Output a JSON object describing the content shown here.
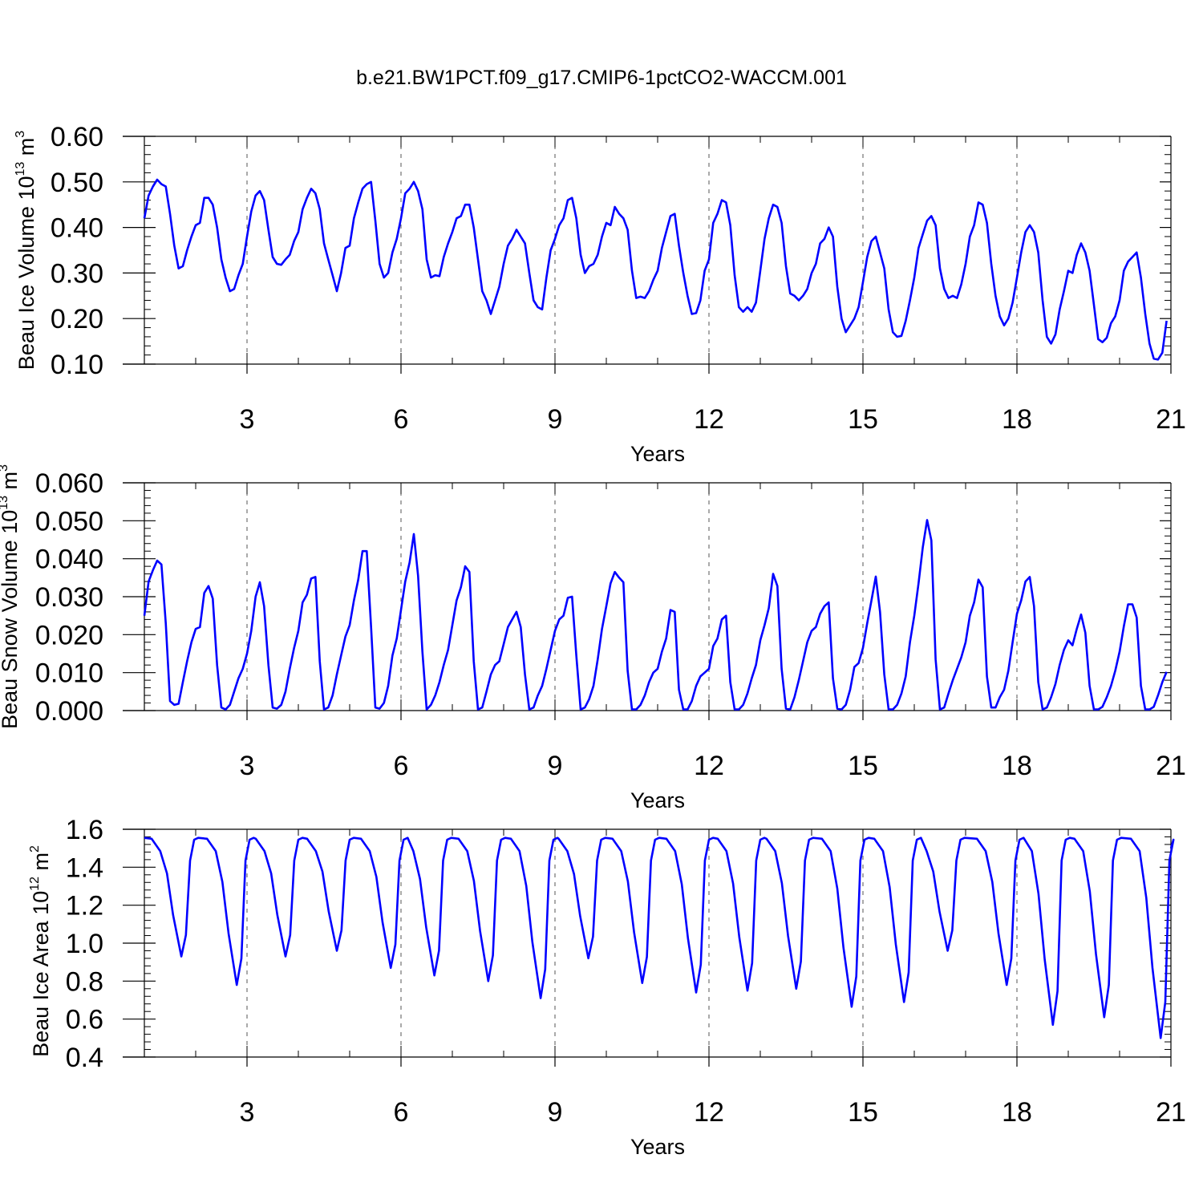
{
  "figure": {
    "title": "b.e21.BW1PCT.f09_g17.CMIP6-1pctCO2-WACCM.001"
  },
  "chart_data": [
    {
      "type": "line",
      "ylabel": {
        "main": "Beau Ice Volume 10",
        "exp": "13",
        "unit": " m",
        "unit_exp": "3"
      },
      "xlabel": "Years",
      "xlim": [
        1.0,
        21.0
      ],
      "ylim": [
        0.1,
        0.6
      ],
      "x_ticks": [
        3,
        6,
        9,
        12,
        15,
        18,
        21
      ],
      "x_tick_labels": [
        "3",
        "6",
        "9",
        "12",
        "15",
        "18",
        "21"
      ],
      "y_ticks": [
        0.1,
        0.2,
        0.3,
        0.4,
        0.5,
        0.6
      ],
      "y_tick_labels": [
        "0.10",
        "0.20",
        "0.30",
        "0.40",
        "0.50",
        "0.60"
      ],
      "grid": "vertical dashed at major x ticks",
      "series": [
        {
          "color": "#0000ff",
          "x_start": 1.0,
          "x_step": 0.08333,
          "values": [
            0.42,
            0.47,
            0.49,
            0.505,
            0.495,
            0.49,
            0.43,
            0.36,
            0.31,
            0.315,
            0.35,
            0.38,
            0.405,
            0.41,
            0.465,
            0.465,
            0.45,
            0.4,
            0.33,
            0.29,
            0.26,
            0.265,
            0.295,
            0.32,
            0.38,
            0.435,
            0.47,
            0.48,
            0.46,
            0.395,
            0.335,
            0.32,
            0.318,
            0.33,
            0.34,
            0.37,
            0.39,
            0.44,
            0.465,
            0.485,
            0.475,
            0.44,
            0.365,
            0.33,
            0.295,
            0.26,
            0.3,
            0.355,
            0.36,
            0.42,
            0.455,
            0.485,
            0.495,
            0.5,
            0.415,
            0.32,
            0.29,
            0.3,
            0.345,
            0.375,
            0.42,
            0.475,
            0.485,
            0.5,
            0.48,
            0.44,
            0.33,
            0.29,
            0.295,
            0.293,
            0.335,
            0.365,
            0.39,
            0.42,
            0.425,
            0.45,
            0.45,
            0.4,
            0.33,
            0.26,
            0.24,
            0.21,
            0.24,
            0.27,
            0.32,
            0.36,
            0.375,
            0.395,
            0.38,
            0.365,
            0.3,
            0.24,
            0.225,
            0.22,
            0.29,
            0.35,
            0.375,
            0.405,
            0.42,
            0.46,
            0.465,
            0.42,
            0.34,
            0.3,
            0.315,
            0.32,
            0.34,
            0.38,
            0.41,
            0.405,
            0.445,
            0.43,
            0.42,
            0.395,
            0.305,
            0.245,
            0.248,
            0.245,
            0.26,
            0.285,
            0.305,
            0.355,
            0.39,
            0.425,
            0.43,
            0.36,
            0.3,
            0.25,
            0.21,
            0.212,
            0.24,
            0.305,
            0.33,
            0.41,
            0.43,
            0.46,
            0.455,
            0.405,
            0.295,
            0.225,
            0.215,
            0.225,
            0.215,
            0.235,
            0.305,
            0.375,
            0.42,
            0.45,
            0.445,
            0.41,
            0.315,
            0.255,
            0.25,
            0.24,
            0.25,
            0.265,
            0.3,
            0.32,
            0.365,
            0.375,
            0.4,
            0.38,
            0.27,
            0.2,
            0.17,
            0.185,
            0.2,
            0.225,
            0.28,
            0.335,
            0.37,
            0.38,
            0.345,
            0.31,
            0.22,
            0.17,
            0.16,
            0.162,
            0.195,
            0.24,
            0.29,
            0.355,
            0.385,
            0.415,
            0.425,
            0.405,
            0.31,
            0.265,
            0.245,
            0.25,
            0.245,
            0.275,
            0.32,
            0.38,
            0.405,
            0.455,
            0.45,
            0.41,
            0.32,
            0.25,
            0.205,
            0.185,
            0.2,
            0.235,
            0.29,
            0.345,
            0.39,
            0.405,
            0.39,
            0.345,
            0.24,
            0.16,
            0.145,
            0.165,
            0.22,
            0.26,
            0.305,
            0.3,
            0.34,
            0.365,
            0.345,
            0.305,
            0.23,
            0.155,
            0.148,
            0.158,
            0.19,
            0.205,
            0.24,
            0.305,
            0.325,
            0.335,
            0.345,
            0.29,
            0.21,
            0.145,
            0.112,
            0.11,
            0.125,
            0.195
          ]
        }
      ]
    },
    {
      "type": "line",
      "ylabel": {
        "main": "Beau Snow Volume 10",
        "exp": "13",
        "unit": " m",
        "unit_exp": "3"
      },
      "xlabel": "Years",
      "xlim": [
        1.0,
        21.0
      ],
      "ylim": [
        0.0,
        0.06
      ],
      "x_ticks": [
        3,
        6,
        9,
        12,
        15,
        18,
        21
      ],
      "x_tick_labels": [
        "3",
        "6",
        "9",
        "12",
        "15",
        "18",
        "21"
      ],
      "y_ticks": [
        0.0,
        0.01,
        0.02,
        0.03,
        0.04,
        0.05,
        0.06
      ],
      "y_tick_labels": [
        "0.000",
        "0.010",
        "0.020",
        "0.030",
        "0.040",
        "0.050",
        "0.060"
      ],
      "grid": "vertical dashed at major x ticks",
      "series": [
        {
          "color": "#0000ff",
          "x_start": 1.0,
          "x_step": 0.08333,
          "values": [
            0.025,
            0.034,
            0.037,
            0.0395,
            0.0385,
            0.023,
            0.0025,
            0.0015,
            0.0018,
            0.0075,
            0.013,
            0.018,
            0.0215,
            0.022,
            0.031,
            0.0328,
            0.0295,
            0.012,
            0.0008,
            0.0003,
            0.0015,
            0.005,
            0.0085,
            0.011,
            0.015,
            0.021,
            0.03,
            0.0338,
            0.0275,
            0.012,
            0.0008,
            0.0005,
            0.0015,
            0.005,
            0.011,
            0.0165,
            0.021,
            0.0285,
            0.0305,
            0.0348,
            0.0352,
            0.013,
            0.0003,
            0.0008,
            0.004,
            0.0095,
            0.0145,
            0.0195,
            0.0225,
            0.029,
            0.0345,
            0.042,
            0.042,
            0.022,
            0.0008,
            0.0005,
            0.002,
            0.0065,
            0.0145,
            0.019,
            0.0265,
            0.034,
            0.039,
            0.0465,
            0.0355,
            0.0155,
            0.0003,
            0.0015,
            0.004,
            0.0075,
            0.012,
            0.016,
            0.0225,
            0.029,
            0.0325,
            0.038,
            0.0365,
            0.013,
            0.0003,
            0.0008,
            0.005,
            0.0095,
            0.012,
            0.013,
            0.0175,
            0.022,
            0.024,
            0.026,
            0.022,
            0.0095,
            0.0003,
            0.0008,
            0.004,
            0.0065,
            0.011,
            0.016,
            0.021,
            0.024,
            0.025,
            0.0297,
            0.03,
            0.0145,
            0.0003,
            0.0008,
            0.003,
            0.0065,
            0.0135,
            0.0215,
            0.0275,
            0.0335,
            0.0365,
            0.035,
            0.0338,
            0.0105,
            0.0003,
            0.0003,
            0.0015,
            0.004,
            0.0075,
            0.01,
            0.011,
            0.0155,
            0.019,
            0.0265,
            0.026,
            0.0055,
            0.0003,
            0.0003,
            0.0025,
            0.0065,
            0.009,
            0.01,
            0.011,
            0.017,
            0.019,
            0.024,
            0.025,
            0.0075,
            0.0003,
            0.0003,
            0.0015,
            0.0045,
            0.0085,
            0.012,
            0.0185,
            0.0225,
            0.027,
            0.036,
            0.0328,
            0.011,
            0.0005,
            0.0003,
            0.0035,
            0.008,
            0.013,
            0.018,
            0.021,
            0.022,
            0.0255,
            0.0275,
            0.0285,
            0.0085,
            0.0005,
            0.0003,
            0.0015,
            0.0055,
            0.0115,
            0.0125,
            0.0165,
            0.023,
            0.029,
            0.0353,
            0.026,
            0.0095,
            0.0003,
            0.0003,
            0.0015,
            0.0045,
            0.009,
            0.018,
            0.025,
            0.0335,
            0.043,
            0.0502,
            0.0448,
            0.0135,
            0.0003,
            0.0008,
            0.0045,
            0.008,
            0.011,
            0.014,
            0.018,
            0.025,
            0.0285,
            0.0345,
            0.0325,
            0.009,
            0.0008,
            0.0008,
            0.0035,
            0.0055,
            0.0105,
            0.018,
            0.0255,
            0.029,
            0.034,
            0.0352,
            0.0275,
            0.0075,
            0.0003,
            0.0008,
            0.0035,
            0.007,
            0.012,
            0.016,
            0.0185,
            0.0172,
            0.0215,
            0.0253,
            0.0205,
            0.0065,
            0.0003,
            0.0003,
            0.001,
            0.0035,
            0.0065,
            0.0105,
            0.0155,
            0.0222,
            0.028,
            0.028,
            0.0245,
            0.0065,
            0.0003,
            0.0003,
            0.001,
            0.004,
            0.0075,
            0.0102
          ]
        }
      ]
    },
    {
      "type": "line",
      "ylabel": {
        "main": "Beau Ice Area 10",
        "exp": "12",
        "unit": " m",
        "unit_exp": "2"
      },
      "xlabel": "Years",
      "xlim": [
        1.0,
        21.0
      ],
      "ylim": [
        0.4,
        1.6
      ],
      "x_ticks": [
        3,
        6,
        9,
        12,
        15,
        18,
        21
      ],
      "x_tick_labels": [
        "3",
        "6",
        "9",
        "12",
        "15",
        "18",
        "21"
      ],
      "y_ticks": [
        0.4,
        0.6,
        0.8,
        1.0,
        1.2,
        1.4,
        1.6
      ],
      "y_tick_labels": [
        "0.4",
        "0.6",
        "0.8",
        "1.0",
        "1.2",
        "1.4",
        "1.6"
      ],
      "grid": "vertical dashed at major x ticks",
      "series": [
        {
          "color": "#0000ff",
          "troughs": [
            0.93,
            0.78,
            0.93,
            0.96,
            0.87,
            0.83,
            0.8,
            0.71,
            0.92,
            0.79,
            0.74,
            0.75,
            0.76,
            0.665,
            0.69,
            0.96,
            0.78,
            0.57,
            0.61,
            0.5
          ],
          "trough_x": [
            1.72,
            2.8,
            3.75,
            4.75,
            5.8,
            6.65,
            7.7,
            8.72,
            9.65,
            10.7,
            11.75,
            12.75,
            13.7,
            14.78,
            15.8,
            16.65,
            17.8,
            18.7,
            19.7,
            20.8
          ],
          "peak": 1.555,
          "end_value": 1.5
        }
      ]
    }
  ]
}
